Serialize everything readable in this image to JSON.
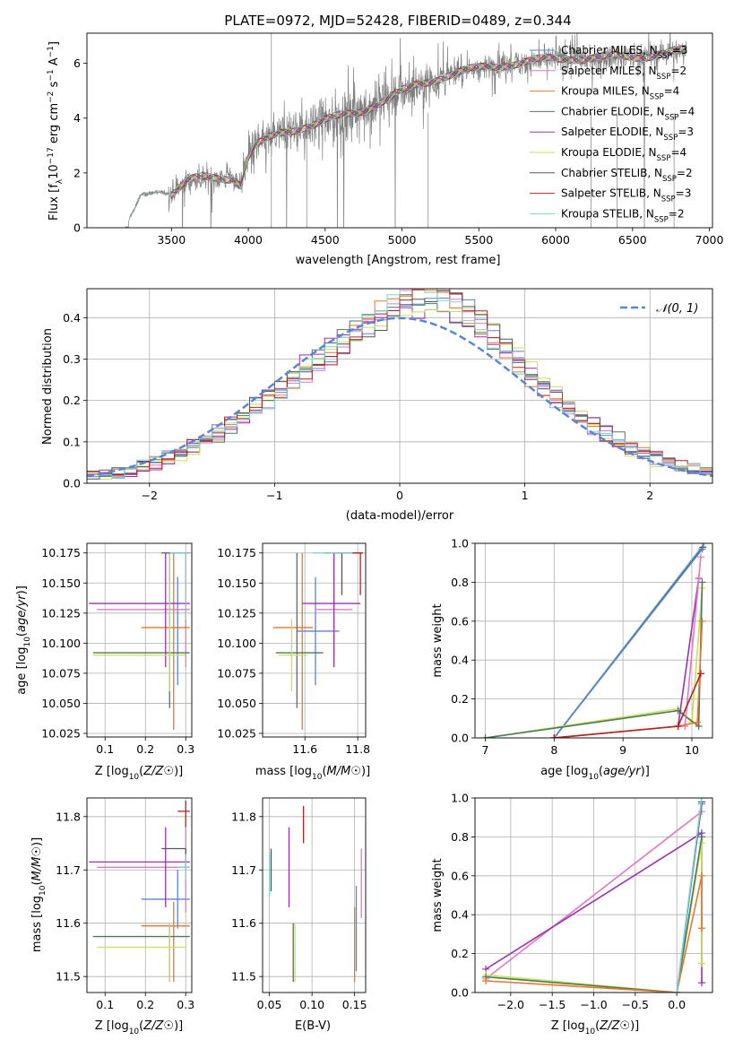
{
  "figure": {
    "title": "PLATE=0972, MJD=52428, FIBERID=0489, z=0.344"
  },
  "colors": {
    "chabrier_miles": "#5b84d6",
    "salpeter_miles": "#e377c2",
    "kroupa_miles": "#e6772a",
    "chabrier_elodie": "#4a7a5a",
    "salpeter_elodie": "#9b30b0",
    "kroupa_elodie": "#c8e055",
    "chabrier_stelib": "#555555",
    "salpeter_stelib": "#b22222",
    "kroupa_stelib": "#7ecfd6",
    "data_spectrum": "#808080",
    "normal_curve": "#5b84d6",
    "grid": "#b0b0b0"
  },
  "models": [
    {
      "base": "Chabrier MILES",
      "nssp": "3",
      "color_key": "chabrier_miles"
    },
    {
      "base": "Salpeter MILES",
      "nssp": "2",
      "color_key": "salpeter_miles"
    },
    {
      "base": "Kroupa MILES",
      "nssp": "4",
      "color_key": "kroupa_miles"
    },
    {
      "base": "Chabrier ELODIE",
      "nssp": "4",
      "color_key": "chabrier_elodie"
    },
    {
      "base": "Salpeter ELODIE",
      "nssp": "3",
      "color_key": "salpeter_elodie"
    },
    {
      "base": "Kroupa ELODIE",
      "nssp": "4",
      "color_key": "kroupa_elodie"
    },
    {
      "base": "Chabrier STELIB",
      "nssp": "2",
      "color_key": "chabrier_stelib"
    },
    {
      "base": "Salpeter STELIB",
      "nssp": "3",
      "color_key": "salpeter_stelib"
    },
    {
      "base": "Kroupa STELIB",
      "nssp": "2",
      "color_key": "kroupa_stelib"
    }
  ],
  "chart_data": [
    {
      "id": "spectrum",
      "type": "line",
      "xlabel": "wavelength [Angstrom, rest frame]",
      "ylabel": "Flux [f_λ 10^-17 erg cm^-2 s^-1 A^-1]",
      "xlim": [
        2950,
        7020
      ],
      "ylim": [
        0,
        7.1
      ],
      "xticks": [
        "3500",
        "4000",
        "4500",
        "5000",
        "5500",
        "6000",
        "6500",
        "7000"
      ],
      "yticks": [
        "0",
        "2",
        "4",
        "6"
      ],
      "grid": false,
      "legend": "top-right",
      "continuum_knots": {
        "x": [
          3200,
          3300,
          3400,
          3500,
          3600,
          3700,
          3800,
          3900,
          3950,
          4000,
          4050,
          4200,
          4350,
          4500,
          4700,
          4900,
          5100,
          5300,
          5500,
          5700,
          5900,
          6100,
          6300,
          6500,
          6700,
          6850
        ],
        "y": [
          0.0,
          1.2,
          1.3,
          1.25,
          1.7,
          1.8,
          1.8,
          1.85,
          1.6,
          2.6,
          3.0,
          3.4,
          3.7,
          3.9,
          4.2,
          4.7,
          5.2,
          5.6,
          5.8,
          6.0,
          6.1,
          6.2,
          6.2,
          6.25,
          6.35,
          6.45
        ]
      }
    },
    {
      "id": "residuals",
      "type": "step",
      "xlabel": "(data-model)/error",
      "ylabel": "Normed distribution",
      "xlim": [
        -2.5,
        2.5
      ],
      "ylim": [
        0,
        0.47
      ],
      "xticks": [
        "−2",
        "−1",
        "0",
        "1",
        "2"
      ],
      "yticks": [
        "0.0",
        "0.1",
        "0.2",
        "0.3",
        "0.4"
      ],
      "grid": true,
      "legend": "top-right",
      "legend_label": "N(0, 1)",
      "bin_width": 0.1,
      "bin_start": -2.5
    },
    {
      "id": "age_vs_Z",
      "type": "errorbar",
      "xlabel": "Z [log10(Z/Z☉)]",
      "ylabel": "age  [log10(age/yr)]",
      "xlim": [
        0.055,
        0.315
      ],
      "ylim": [
        10.022,
        10.183
      ],
      "xticks": [
        "0.1",
        "0.2",
        "0.3"
      ],
      "yticks": [
        "10.025",
        "10.050",
        "10.075",
        "10.100",
        "10.125",
        "10.150",
        "10.175"
      ],
      "grid": true,
      "points": [
        {
          "m": "chabrier_miles",
          "x": 0.28,
          "xerr": [
            0.28,
            0.28
          ],
          "y": 10.11,
          "yerr": [
            10.065,
            10.155
          ]
        },
        {
          "m": "salpeter_miles",
          "x": 0.3,
          "xerr": [
            0.08,
            0.31
          ],
          "y": 10.128,
          "yerr": [
            10.08,
            10.175
          ]
        },
        {
          "m": "kroupa_miles",
          "x": 0.27,
          "xerr": [
            0.19,
            0.31
          ],
          "y": 10.113,
          "yerr": [
            10.028,
            10.175
          ]
        },
        {
          "m": "chabrier_elodie",
          "x": 0.26,
          "xerr": [
            0.07,
            0.31
          ],
          "y": 10.092,
          "yerr": [
            10.046,
            10.175
          ]
        },
        {
          "m": "salpeter_elodie",
          "x": 0.25,
          "xerr": [
            0.06,
            0.31
          ],
          "y": 10.133,
          "yerr": [
            10.08,
            10.175
          ]
        },
        {
          "m": "kroupa_elodie",
          "x": 0.26,
          "xerr": [
            0.07,
            0.3
          ],
          "y": 10.09,
          "yerr": [
            10.06,
            10.175
          ]
        },
        {
          "m": "chabrier_stelib",
          "x": 0.3,
          "xerr": [
            0.24,
            0.31
          ],
          "y": 10.175,
          "yerr": [
            10.175,
            10.175
          ]
        },
        {
          "m": "salpeter_stelib",
          "x": 0.3,
          "xerr": [
            0.3,
            0.31
          ],
          "y": 10.175,
          "yerr": [
            10.175,
            10.175
          ]
        },
        {
          "m": "kroupa_stelib",
          "x": 0.3,
          "xerr": [
            0.26,
            0.31
          ],
          "y": 10.175,
          "yerr": [
            10.12,
            10.175
          ]
        }
      ]
    },
    {
      "id": "age_vs_mass",
      "type": "errorbar",
      "xlabel": "mass [log10(M/M☉)]",
      "ylabel": "",
      "xlim": [
        11.44,
        11.83
      ],
      "ylim": [
        10.022,
        10.183
      ],
      "xticks": [
        "11.6",
        "11.8"
      ],
      "yticks": [
        "10.025",
        "10.050",
        "10.075",
        "10.100",
        "10.125",
        "10.150",
        "10.175"
      ],
      "grid": true,
      "points": [
        {
          "m": "chabrier_miles",
          "x": 11.64,
          "xerr": [
            11.57,
            11.73
          ],
          "y": 10.11,
          "yerr": [
            10.065,
            10.155
          ]
        },
        {
          "m": "salpeter_miles",
          "x": 11.71,
          "xerr": [
            11.64,
            11.78
          ],
          "y": 10.128,
          "yerr": [
            10.08,
            10.175
          ]
        },
        {
          "m": "kroupa_miles",
          "x": 11.59,
          "xerr": [
            11.48,
            11.63
          ],
          "y": 10.113,
          "yerr": [
            10.028,
            10.175
          ]
        },
        {
          "m": "chabrier_elodie",
          "x": 11.57,
          "xerr": [
            11.49,
            11.67
          ],
          "y": 10.092,
          "yerr": [
            10.046,
            10.175
          ]
        },
        {
          "m": "salpeter_elodie",
          "x": 11.71,
          "xerr": [
            11.59,
            11.81
          ],
          "y": 10.133,
          "yerr": [
            10.08,
            10.175
          ]
        },
        {
          "m": "kroupa_elodie",
          "x": 11.55,
          "xerr": [
            11.5,
            11.61
          ],
          "y": 10.09,
          "yerr": [
            10.06,
            10.12
          ]
        },
        {
          "m": "chabrier_stelib",
          "x": 11.74,
          "xerr": [
            11.67,
            11.82
          ],
          "y": 10.175,
          "yerr": [
            10.14,
            10.175
          ]
        },
        {
          "m": "salpeter_stelib",
          "x": 11.81,
          "xerr": [
            11.72,
            11.82
          ],
          "y": 10.175,
          "yerr": [
            10.14,
            10.175
          ]
        },
        {
          "m": "kroupa_stelib",
          "x": 11.71,
          "xerr": [
            11.63,
            11.78
          ],
          "y": 10.175,
          "yerr": [
            10.175,
            10.175
          ]
        }
      ]
    },
    {
      "id": "massweight_vs_age",
      "type": "line",
      "xlabel": "age  [log10(age/yr)]",
      "ylabel": "mass weight",
      "xlim": [
        6.85,
        10.3
      ],
      "ylim": [
        0,
        1.0
      ],
      "xticks": [
        "7",
        "8",
        "9",
        "10"
      ],
      "yticks": [
        "0.0",
        "0.2",
        "0.4",
        "0.6",
        "0.8",
        "1.0"
      ],
      "grid": true,
      "series": [
        {
          "m": "kroupa_stelib",
          "x": [
            8.0,
            10.18
          ],
          "y": [
            0.0,
            1.0
          ]
        },
        {
          "m": "chabrier_stelib",
          "x": [
            8.0,
            10.16
          ],
          "y": [
            0.0,
            0.98
          ]
        },
        {
          "m": "chabrier_miles",
          "x": [
            8.0,
            10.15
          ],
          "y": [
            0.0,
            0.97
          ]
        },
        {
          "m": "kroupa_elodie",
          "x": [
            7.0,
            9.8,
            10.0,
            10.15
          ],
          "y": [
            0.0,
            0.15,
            0.08,
            0.77
          ]
        },
        {
          "m": "chabrier_elodie",
          "x": [
            7.0,
            9.8,
            10.1,
            10.15
          ],
          "y": [
            0.0,
            0.14,
            0.06,
            0.8
          ]
        },
        {
          "m": "salpeter_elodie",
          "x": [
            9.8,
            10.1
          ],
          "y": [
            0.06,
            0.82
          ]
        },
        {
          "m": "salpeter_miles",
          "x": [
            9.9,
            10.13
          ],
          "y": [
            0.06,
            0.93
          ]
        },
        {
          "m": "kroupa_miles",
          "x": [
            8.0,
            9.8,
            10.08,
            10.15
          ],
          "y": [
            0.0,
            0.06,
            0.08,
            0.6
          ]
        },
        {
          "m": "salpeter_stelib",
          "x": [
            8.0,
            9.8,
            10.13
          ],
          "y": [
            0.0,
            0.06,
            0.33
          ]
        }
      ]
    },
    {
      "id": "mass_vs_Z",
      "type": "errorbar",
      "xlabel": "Z [log10(Z/Z☉)]",
      "ylabel": "mass [log10(M/M☉)]",
      "xlim": [
        0.055,
        0.315
      ],
      "ylim": [
        11.47,
        11.835
      ],
      "xticks": [
        "0.1",
        "0.2",
        "0.3"
      ],
      "yticks": [
        "11.5",
        "11.6",
        "11.7",
        "11.8"
      ],
      "grid": true,
      "points": [
        {
          "m": "chabrier_miles",
          "x": 0.28,
          "xerr": [
            0.19,
            0.31
          ],
          "y": 11.645,
          "yerr": [
            11.59,
            11.7
          ]
        },
        {
          "m": "salpeter_miles",
          "x": 0.3,
          "xerr": [
            0.08,
            0.31
          ],
          "y": 11.705,
          "yerr": [
            11.62,
            11.78
          ]
        },
        {
          "m": "kroupa_miles",
          "x": 0.27,
          "xerr": [
            0.19,
            0.31
          ],
          "y": 11.595,
          "yerr": [
            11.49,
            11.64
          ]
        },
        {
          "m": "chabrier_elodie",
          "x": 0.26,
          "xerr": [
            0.07,
            0.31
          ],
          "y": 11.575,
          "yerr": [
            11.49,
            11.6
          ]
        },
        {
          "m": "salpeter_elodie",
          "x": 0.25,
          "xerr": [
            0.06,
            0.31
          ],
          "y": 11.715,
          "yerr": [
            11.63,
            11.78
          ]
        },
        {
          "m": "kroupa_elodie",
          "x": 0.26,
          "xerr": [
            0.08,
            0.3
          ],
          "y": 11.555,
          "yerr": [
            11.49,
            11.6
          ]
        },
        {
          "m": "chabrier_stelib",
          "x": 0.3,
          "xerr": [
            0.24,
            0.3
          ],
          "y": 11.74,
          "yerr": [
            11.7,
            11.74
          ]
        },
        {
          "m": "salpeter_stelib",
          "x": 0.3,
          "xerr": [
            0.28,
            0.31
          ],
          "y": 11.81,
          "yerr": [
            11.78,
            11.83
          ]
        },
        {
          "m": "kroupa_stelib",
          "x": 0.3,
          "xerr": [
            0.28,
            0.31
          ],
          "y": 11.705,
          "yerr": [
            11.68,
            11.73
          ]
        }
      ]
    },
    {
      "id": "mass_vs_ebv",
      "type": "errorbar",
      "xlabel": "E(B-V)",
      "ylabel": "",
      "xlim": [
        0.042,
        0.163
      ],
      "ylim": [
        11.47,
        11.835
      ],
      "xticks": [
        "0.05",
        "0.10",
        "0.15"
      ],
      "yticks": [
        "11.5",
        "11.6",
        "11.7",
        "11.8"
      ],
      "grid": true,
      "points": [
        {
          "m": "chabrier_miles",
          "x": 0.152,
          "y": 11.6,
          "yerr": [
            11.51,
            11.67
          ]
        },
        {
          "m": "salpeter_miles",
          "x": 0.158,
          "y": 11.68,
          "yerr": [
            11.61,
            11.74
          ]
        },
        {
          "m": "kroupa_miles",
          "x": 0.15,
          "y": 11.57,
          "yerr": [
            11.49,
            11.63
          ]
        },
        {
          "m": "chabrier_elodie",
          "x": 0.078,
          "y": 11.56,
          "yerr": [
            11.49,
            11.6
          ]
        },
        {
          "m": "salpeter_elodie",
          "x": 0.073,
          "y": 11.7,
          "yerr": [
            11.63,
            11.78
          ]
        },
        {
          "m": "kroupa_elodie",
          "x": 0.08,
          "y": 11.53,
          "yerr": [
            11.49,
            11.6
          ]
        },
        {
          "m": "chabrier_stelib",
          "x": 0.052,
          "y": 11.7,
          "yerr": [
            11.66,
            11.74
          ]
        },
        {
          "m": "salpeter_stelib",
          "x": 0.09,
          "y": 11.79,
          "yerr": [
            11.75,
            11.82
          ]
        },
        {
          "m": "kroupa_stelib",
          "x": 0.05,
          "y": 11.69,
          "yerr": [
            11.65,
            11.73
          ]
        }
      ]
    },
    {
      "id": "massweight_vs_Z",
      "type": "line",
      "xlabel": "Z [log10(Z/Z☉)]",
      "ylabel": "mass weight",
      "xlim": [
        -2.43,
        0.43
      ],
      "ylim": [
        0,
        1.0
      ],
      "xticks": [
        "−2.0",
        "−1.5",
        "−1.0",
        "−0.5",
        "0.0"
      ],
      "yticks": [
        "0.0",
        "0.2",
        "0.4",
        "0.6",
        "0.8",
        "1.0"
      ],
      "grid": true,
      "series": [
        {
          "m": "salpeter_miles",
          "x": [
            -2.3,
            0.3
          ],
          "y": [
            0.07,
            0.93
          ]
        },
        {
          "m": "salpeter_elodie",
          "x": [
            -2.3,
            0.3,
            0.3
          ],
          "y": [
            0.12,
            0.82,
            0.05
          ]
        },
        {
          "m": "kroupa_elodie",
          "x": [
            -2.3,
            0.0,
            0.3,
            0.3
          ],
          "y": [
            0.09,
            0.0,
            0.77,
            0.15
          ]
        },
        {
          "m": "chabrier_elodie",
          "x": [
            -2.3,
            0.0,
            0.3
          ],
          "y": [
            0.08,
            0.0,
            0.8
          ]
        },
        {
          "m": "kroupa_miles",
          "x": [
            -2.3,
            0.0,
            0.3,
            0.3
          ],
          "y": [
            0.06,
            0.0,
            0.6,
            0.33
          ]
        },
        {
          "m": "chabrier_miles",
          "x": [
            0.0,
            0.3
          ],
          "y": [
            0.0,
            0.97
          ]
        },
        {
          "m": "chabrier_stelib",
          "x": [
            0.0,
            0.3
          ],
          "y": [
            0.0,
            0.98
          ]
        },
        {
          "m": "kroupa_stelib",
          "x": [
            0.0,
            0.3
          ],
          "y": [
            0.0,
            1.0
          ]
        }
      ]
    }
  ]
}
